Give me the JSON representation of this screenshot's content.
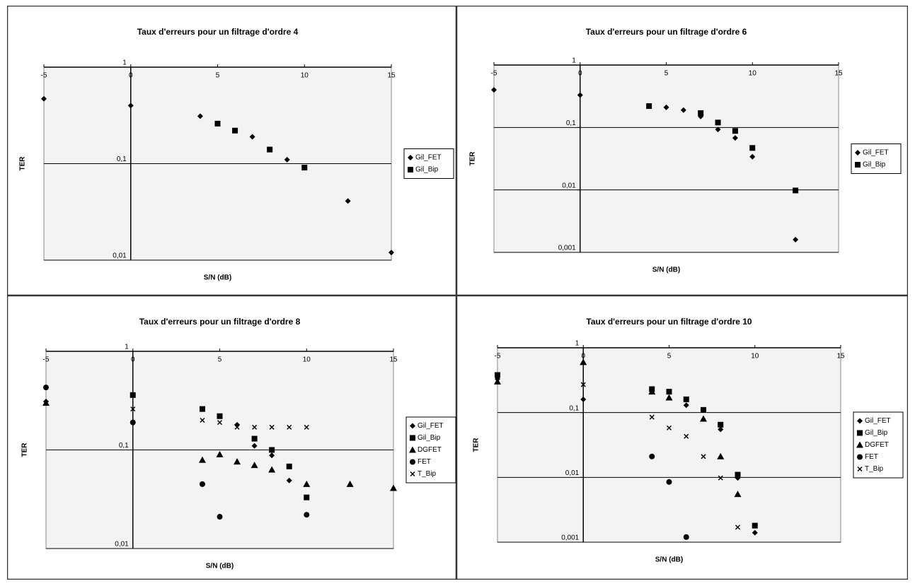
{
  "chart_data": [
    {
      "type": "scatter",
      "title": "Taux d'erreurs pour un filtrage d'ordre 4",
      "xlabel": "S/N (dB)",
      "ylabel": "TER",
      "xlim": [
        -5,
        15
      ],
      "xticks": [
        -5,
        0,
        5,
        10,
        15
      ],
      "ylim": [
        0.01,
        1
      ],
      "yscale": "log",
      "yticks": [
        1,
        {
          "value": 0.1,
          "label": "0,1"
        },
        {
          "value": 0.01,
          "label": "0,01"
        }
      ],
      "grid": true,
      "legend": "right",
      "x_axis_position": "top",
      "y_axis_crosses": 0,
      "series": [
        {
          "name": "Gil_FET",
          "color": "#000000",
          "marker": "diamond",
          "x": [
            -5,
            0,
            4,
            7,
            9,
            12.5,
            15
          ],
          "values": [
            0.47,
            0.4,
            0.31,
            0.19,
            0.11,
            0.041,
            0.012
          ]
        },
        {
          "name": "Gil_Bip",
          "color": "#000000",
          "marker": "square",
          "x": [
            5,
            6,
            8,
            10
          ],
          "values": [
            0.26,
            0.22,
            0.14,
            0.091
          ]
        }
      ]
    },
    {
      "type": "scatter",
      "title": "Taux d'erreurs pour un filtrage d'ordre 6",
      "xlabel": "S/N (dB)",
      "ylabel": "TER",
      "xlim": [
        -5,
        15
      ],
      "xticks": [
        -5,
        0,
        5,
        10,
        15
      ],
      "ylim": [
        0.001,
        1
      ],
      "yscale": "log",
      "yticks": [
        1,
        {
          "value": 0.1,
          "label": "0,1"
        },
        {
          "value": 0.01,
          "label": "0,01"
        },
        {
          "value": 0.001,
          "label": "0,001"
        }
      ],
      "grid": true,
      "legend": "right",
      "x_axis_position": "top",
      "y_axis_crosses": 0,
      "series": [
        {
          "name": "Gil_FET",
          "color": "#000000",
          "marker": "diamond",
          "x": [
            -5,
            0,
            5,
            6,
            7,
            8,
            9,
            10,
            12.5
          ],
          "values": [
            0.4,
            0.33,
            0.21,
            0.19,
            0.15,
            0.093,
            0.068,
            0.034,
            0.0016
          ]
        },
        {
          "name": "Gil_Bip",
          "color": "#000000",
          "marker": "square",
          "x": [
            4,
            7,
            8,
            9,
            10,
            12.5
          ],
          "values": [
            0.22,
            0.17,
            0.12,
            0.088,
            0.047,
            0.0098
          ]
        }
      ]
    },
    {
      "type": "scatter",
      "title": "Taux d'erreurs pour un filtrage d'ordre 8",
      "xlabel": "S/N (dB)",
      "ylabel": "TER",
      "xlim": [
        -5,
        15
      ],
      "xticks": [
        -5,
        0,
        5,
        10,
        15
      ],
      "ylim": [
        0.01,
        1
      ],
      "yscale": "log",
      "yticks": [
        1,
        {
          "value": 0.1,
          "label": "0,1"
        },
        {
          "value": 0.01,
          "label": "0,01"
        }
      ],
      "grid": true,
      "legend": "right",
      "x_axis_position": "top",
      "y_axis_crosses": 0,
      "series": [
        {
          "name": "Gil_FET",
          "color": "#000000",
          "marker": "diamond",
          "x": [
            -5,
            0,
            6,
            7,
            8,
            9,
            10
          ],
          "values": [
            0.31,
            0.19,
            0.18,
            0.11,
            0.088,
            0.049,
            0.022
          ]
        },
        {
          "name": "Gil_Bip",
          "color": "#000000",
          "marker": "square",
          "x": [
            0,
            4,
            5,
            7,
            8,
            9,
            10
          ],
          "values": [
            0.36,
            0.26,
            0.22,
            0.13,
            0.1,
            0.068,
            0.033
          ]
        },
        {
          "name": "DGFET",
          "color": "#000000",
          "marker": "triangle",
          "x": [
            -5,
            4,
            5,
            6,
            7,
            8,
            10,
            12.5,
            15
          ],
          "values": [
            0.3,
            0.079,
            0.09,
            0.076,
            0.07,
            0.063,
            0.045,
            0.045,
            0.041
          ]
        },
        {
          "name": "FET",
          "color": "#000000",
          "marker": "circle",
          "x": [
            -5,
            0,
            4,
            5,
            10
          ],
          "values": [
            0.43,
            0.19,
            0.045,
            0.021,
            0.022
          ]
        },
        {
          "name": "T_Bip",
          "color": "#000000",
          "marker": "x",
          "x": [
            0,
            4,
            5,
            6,
            7,
            8,
            9,
            10
          ],
          "values": [
            0.26,
            0.2,
            0.19,
            0.17,
            0.17,
            0.17,
            0.17,
            0.17
          ]
        }
      ]
    },
    {
      "type": "scatter",
      "title": "Taux d'erreurs pour un filtrage d'ordre 10",
      "xlabel": "S/N (dB)",
      "ylabel": "TER",
      "xlim": [
        -5,
        15
      ],
      "xticks": [
        -5,
        0,
        5,
        10,
        15
      ],
      "ylim": [
        0.001,
        1
      ],
      "yscale": "log",
      "yticks": [
        1,
        {
          "value": 0.1,
          "label": "0,1"
        },
        {
          "value": 0.01,
          "label": "0,01"
        },
        {
          "value": 0.001,
          "label": "0,001"
        }
      ],
      "grid": true,
      "legend": "right",
      "x_axis_position": "top",
      "y_axis_crosses": 0,
      "series": [
        {
          "name": "Gil_FET",
          "color": "#000000",
          "marker": "diamond",
          "x": [
            -5,
            0,
            6,
            8,
            9,
            10
          ],
          "values": [
            0.33,
            0.16,
            0.13,
            0.055,
            0.0098,
            0.0014
          ]
        },
        {
          "name": "Gil_Bip",
          "color": "#000000",
          "marker": "square",
          "x": [
            -5,
            4,
            5,
            6,
            7,
            8,
            9,
            10
          ],
          "values": [
            0.38,
            0.23,
            0.21,
            0.16,
            0.11,
            0.065,
            0.011,
            0.0018
          ]
        },
        {
          "name": "DGFET",
          "color": "#000000",
          "marker": "triangle",
          "x": [
            -5,
            0,
            4,
            5,
            7,
            8,
            9
          ],
          "values": [
            0.3,
            0.6,
            0.21,
            0.17,
            0.08,
            0.021,
            0.0055
          ]
        },
        {
          "name": "FET",
          "color": "#000000",
          "marker": "circle",
          "x": [
            4,
            5,
            6
          ],
          "values": [
            0.021,
            0.0085,
            0.0012
          ]
        },
        {
          "name": "T_Bip",
          "color": "#000000",
          "marker": "x",
          "x": [
            0,
            4,
            5,
            6,
            7,
            8,
            9
          ],
          "values": [
            0.27,
            0.085,
            0.058,
            0.043,
            0.021,
            0.0098,
            0.0017
          ]
        }
      ]
    }
  ]
}
